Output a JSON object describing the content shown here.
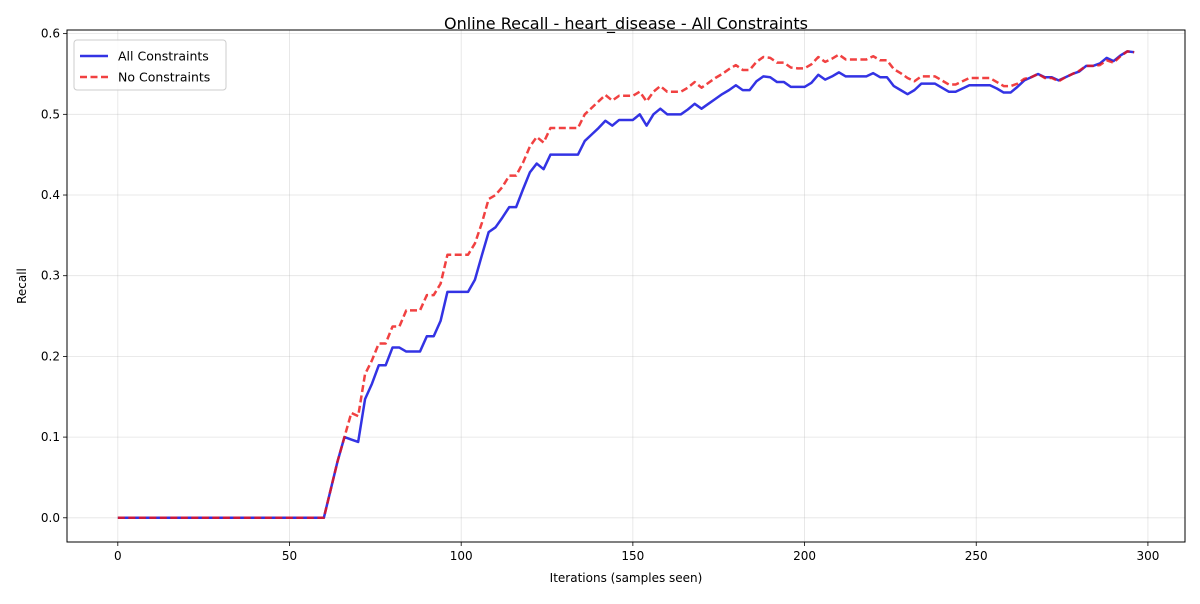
{
  "chart_data": {
    "type": "line",
    "title": "Online Recall - heart_disease - All Constraints",
    "xlabel": "Iterations (samples seen)",
    "ylabel": "Recall",
    "xlim": [
      -14.8,
      310.8
    ],
    "ylim": [
      -0.03,
      0.6045
    ],
    "xticks": [
      0,
      50,
      100,
      150,
      200,
      250,
      300
    ],
    "yticks": [
      0.0,
      0.1,
      0.2,
      0.3,
      0.4,
      0.5,
      0.6
    ],
    "grid": true,
    "legend_position": "upper-left",
    "series": [
      {
        "name": "All Constraints",
        "color": "#0000dd",
        "style": "solid",
        "points": [
          [
            0,
            0
          ],
          [
            58,
            0
          ],
          [
            60,
            0
          ],
          [
            62,
            0.035
          ],
          [
            64,
            0.07
          ],
          [
            66,
            0.1
          ],
          [
            68,
            0.097
          ],
          [
            70,
            0.094
          ],
          [
            72,
            0.147
          ],
          [
            74,
            0.166
          ],
          [
            76,
            0.189
          ],
          [
            78,
            0.189
          ],
          [
            80,
            0.211
          ],
          [
            82,
            0.211
          ],
          [
            84,
            0.206
          ],
          [
            86,
            0.206
          ],
          [
            88,
            0.206
          ],
          [
            90,
            0.225
          ],
          [
            92,
            0.225
          ],
          [
            94,
            0.244
          ],
          [
            96,
            0.28
          ],
          [
            98,
            0.28
          ],
          [
            100,
            0.28
          ],
          [
            102,
            0.28
          ],
          [
            104,
            0.295
          ],
          [
            106,
            0.325
          ],
          [
            108,
            0.354
          ],
          [
            110,
            0.36
          ],
          [
            112,
            0.372
          ],
          [
            114,
            0.385
          ],
          [
            116,
            0.385
          ],
          [
            118,
            0.407
          ],
          [
            120,
            0.428
          ],
          [
            122,
            0.439
          ],
          [
            124,
            0.432
          ],
          [
            126,
            0.45
          ],
          [
            128,
            0.45
          ],
          [
            130,
            0.45
          ],
          [
            132,
            0.45
          ],
          [
            134,
            0.45
          ],
          [
            136,
            0.467
          ],
          [
            138,
            0.475
          ],
          [
            140,
            0.483
          ],
          [
            142,
            0.492
          ],
          [
            144,
            0.486
          ],
          [
            146,
            0.493
          ],
          [
            148,
            0.493
          ],
          [
            150,
            0.493
          ],
          [
            152,
            0.5
          ],
          [
            154,
            0.486
          ],
          [
            156,
            0.5
          ],
          [
            158,
            0.507
          ],
          [
            160,
            0.5
          ],
          [
            162,
            0.5
          ],
          [
            164,
            0.5
          ],
          [
            166,
            0.506
          ],
          [
            168,
            0.513
          ],
          [
            170,
            0.507
          ],
          [
            172,
            0.513
          ],
          [
            174,
            0.519
          ],
          [
            176,
            0.525
          ],
          [
            178,
            0.53
          ],
          [
            180,
            0.536
          ],
          [
            182,
            0.53
          ],
          [
            184,
            0.53
          ],
          [
            186,
            0.541
          ],
          [
            188,
            0.547
          ],
          [
            190,
            0.546
          ],
          [
            192,
            0.54
          ],
          [
            194,
            0.54
          ],
          [
            196,
            0.534
          ],
          [
            198,
            0.534
          ],
          [
            200,
            0.534
          ],
          [
            202,
            0.539
          ],
          [
            204,
            0.549
          ],
          [
            206,
            0.543
          ],
          [
            208,
            0.547
          ],
          [
            210,
            0.552
          ],
          [
            212,
            0.547
          ],
          [
            214,
            0.547
          ],
          [
            216,
            0.547
          ],
          [
            218,
            0.547
          ],
          [
            220,
            0.551
          ],
          [
            222,
            0.546
          ],
          [
            224,
            0.546
          ],
          [
            226,
            0.535
          ],
          [
            228,
            0.53
          ],
          [
            230,
            0.525
          ],
          [
            232,
            0.53
          ],
          [
            234,
            0.538
          ],
          [
            236,
            0.538
          ],
          [
            238,
            0.538
          ],
          [
            240,
            0.533
          ],
          [
            242,
            0.528
          ],
          [
            244,
            0.528
          ],
          [
            246,
            0.532
          ],
          [
            248,
            0.536
          ],
          [
            250,
            0.536
          ],
          [
            252,
            0.536
          ],
          [
            254,
            0.536
          ],
          [
            256,
            0.532
          ],
          [
            258,
            0.527
          ],
          [
            260,
            0.527
          ],
          [
            262,
            0.534
          ],
          [
            264,
            0.542
          ],
          [
            266,
            0.546
          ],
          [
            268,
            0.55
          ],
          [
            270,
            0.546
          ],
          [
            272,
            0.546
          ],
          [
            274,
            0.542
          ],
          [
            276,
            0.546
          ],
          [
            278,
            0.55
          ],
          [
            280,
            0.553
          ],
          [
            282,
            0.56
          ],
          [
            284,
            0.56
          ],
          [
            286,
            0.563
          ],
          [
            288,
            0.57
          ],
          [
            290,
            0.566
          ],
          [
            292,
            0.573
          ],
          [
            294,
            0.578
          ],
          [
            296,
            0.577
          ]
        ]
      },
      {
        "name": "No Constraints",
        "color": "#ee1111",
        "style": "dashed",
        "points": [
          [
            0,
            0
          ],
          [
            58,
            0
          ],
          [
            60,
            0
          ],
          [
            62,
            0.035
          ],
          [
            64,
            0.07
          ],
          [
            66,
            0.1
          ],
          [
            68,
            0.13
          ],
          [
            70,
            0.126
          ],
          [
            72,
            0.178
          ],
          [
            74,
            0.195
          ],
          [
            76,
            0.216
          ],
          [
            78,
            0.216
          ],
          [
            80,
            0.237
          ],
          [
            82,
            0.237
          ],
          [
            84,
            0.257
          ],
          [
            86,
            0.257
          ],
          [
            88,
            0.257
          ],
          [
            90,
            0.276
          ],
          [
            92,
            0.276
          ],
          [
            94,
            0.29
          ],
          [
            96,
            0.326
          ],
          [
            98,
            0.326
          ],
          [
            100,
            0.326
          ],
          [
            102,
            0.326
          ],
          [
            104,
            0.34
          ],
          [
            106,
            0.365
          ],
          [
            108,
            0.395
          ],
          [
            110,
            0.4
          ],
          [
            112,
            0.41
          ],
          [
            114,
            0.424
          ],
          [
            116,
            0.424
          ],
          [
            118,
            0.44
          ],
          [
            120,
            0.46
          ],
          [
            122,
            0.472
          ],
          [
            124,
            0.465
          ],
          [
            126,
            0.483
          ],
          [
            128,
            0.483
          ],
          [
            130,
            0.483
          ],
          [
            132,
            0.483
          ],
          [
            134,
            0.483
          ],
          [
            136,
            0.5
          ],
          [
            138,
            0.508
          ],
          [
            140,
            0.516
          ],
          [
            142,
            0.524
          ],
          [
            144,
            0.517
          ],
          [
            146,
            0.523
          ],
          [
            148,
            0.523
          ],
          [
            150,
            0.523
          ],
          [
            152,
            0.528
          ],
          [
            154,
            0.516
          ],
          [
            156,
            0.528
          ],
          [
            158,
            0.535
          ],
          [
            160,
            0.528
          ],
          [
            162,
            0.528
          ],
          [
            164,
            0.528
          ],
          [
            166,
            0.533
          ],
          [
            168,
            0.54
          ],
          [
            170,
            0.533
          ],
          [
            172,
            0.539
          ],
          [
            174,
            0.545
          ],
          [
            176,
            0.55
          ],
          [
            178,
            0.556
          ],
          [
            180,
            0.561
          ],
          [
            182,
            0.555
          ],
          [
            184,
            0.555
          ],
          [
            186,
            0.565
          ],
          [
            188,
            0.571
          ],
          [
            190,
            0.57
          ],
          [
            192,
            0.564
          ],
          [
            194,
            0.564
          ],
          [
            196,
            0.558
          ],
          [
            198,
            0.557
          ],
          [
            200,
            0.557
          ],
          [
            202,
            0.562
          ],
          [
            204,
            0.571
          ],
          [
            206,
            0.565
          ],
          [
            208,
            0.569
          ],
          [
            210,
            0.574
          ],
          [
            212,
            0.568
          ],
          [
            214,
            0.568
          ],
          [
            216,
            0.568
          ],
          [
            218,
            0.568
          ],
          [
            220,
            0.572
          ],
          [
            222,
            0.567
          ],
          [
            224,
            0.567
          ],
          [
            226,
            0.556
          ],
          [
            228,
            0.551
          ],
          [
            230,
            0.545
          ],
          [
            232,
            0.541
          ],
          [
            234,
            0.547
          ],
          [
            236,
            0.547
          ],
          [
            238,
            0.547
          ],
          [
            240,
            0.542
          ],
          [
            242,
            0.537
          ],
          [
            244,
            0.537
          ],
          [
            246,
            0.541
          ],
          [
            248,
            0.545
          ],
          [
            250,
            0.545
          ],
          [
            252,
            0.545
          ],
          [
            254,
            0.545
          ],
          [
            256,
            0.54
          ],
          [
            258,
            0.535
          ],
          [
            260,
            0.535
          ],
          [
            262,
            0.538
          ],
          [
            264,
            0.544
          ],
          [
            266,
            0.546
          ],
          [
            268,
            0.55
          ],
          [
            270,
            0.545
          ],
          [
            272,
            0.545
          ],
          [
            274,
            0.541
          ],
          [
            276,
            0.546
          ],
          [
            278,
            0.55
          ],
          [
            280,
            0.554
          ],
          [
            282,
            0.56
          ],
          [
            284,
            0.56
          ],
          [
            286,
            0.561
          ],
          [
            288,
            0.567
          ],
          [
            290,
            0.564
          ],
          [
            292,
            0.572
          ],
          [
            294,
            0.578
          ],
          [
            296,
            0.577
          ]
        ]
      }
    ]
  }
}
